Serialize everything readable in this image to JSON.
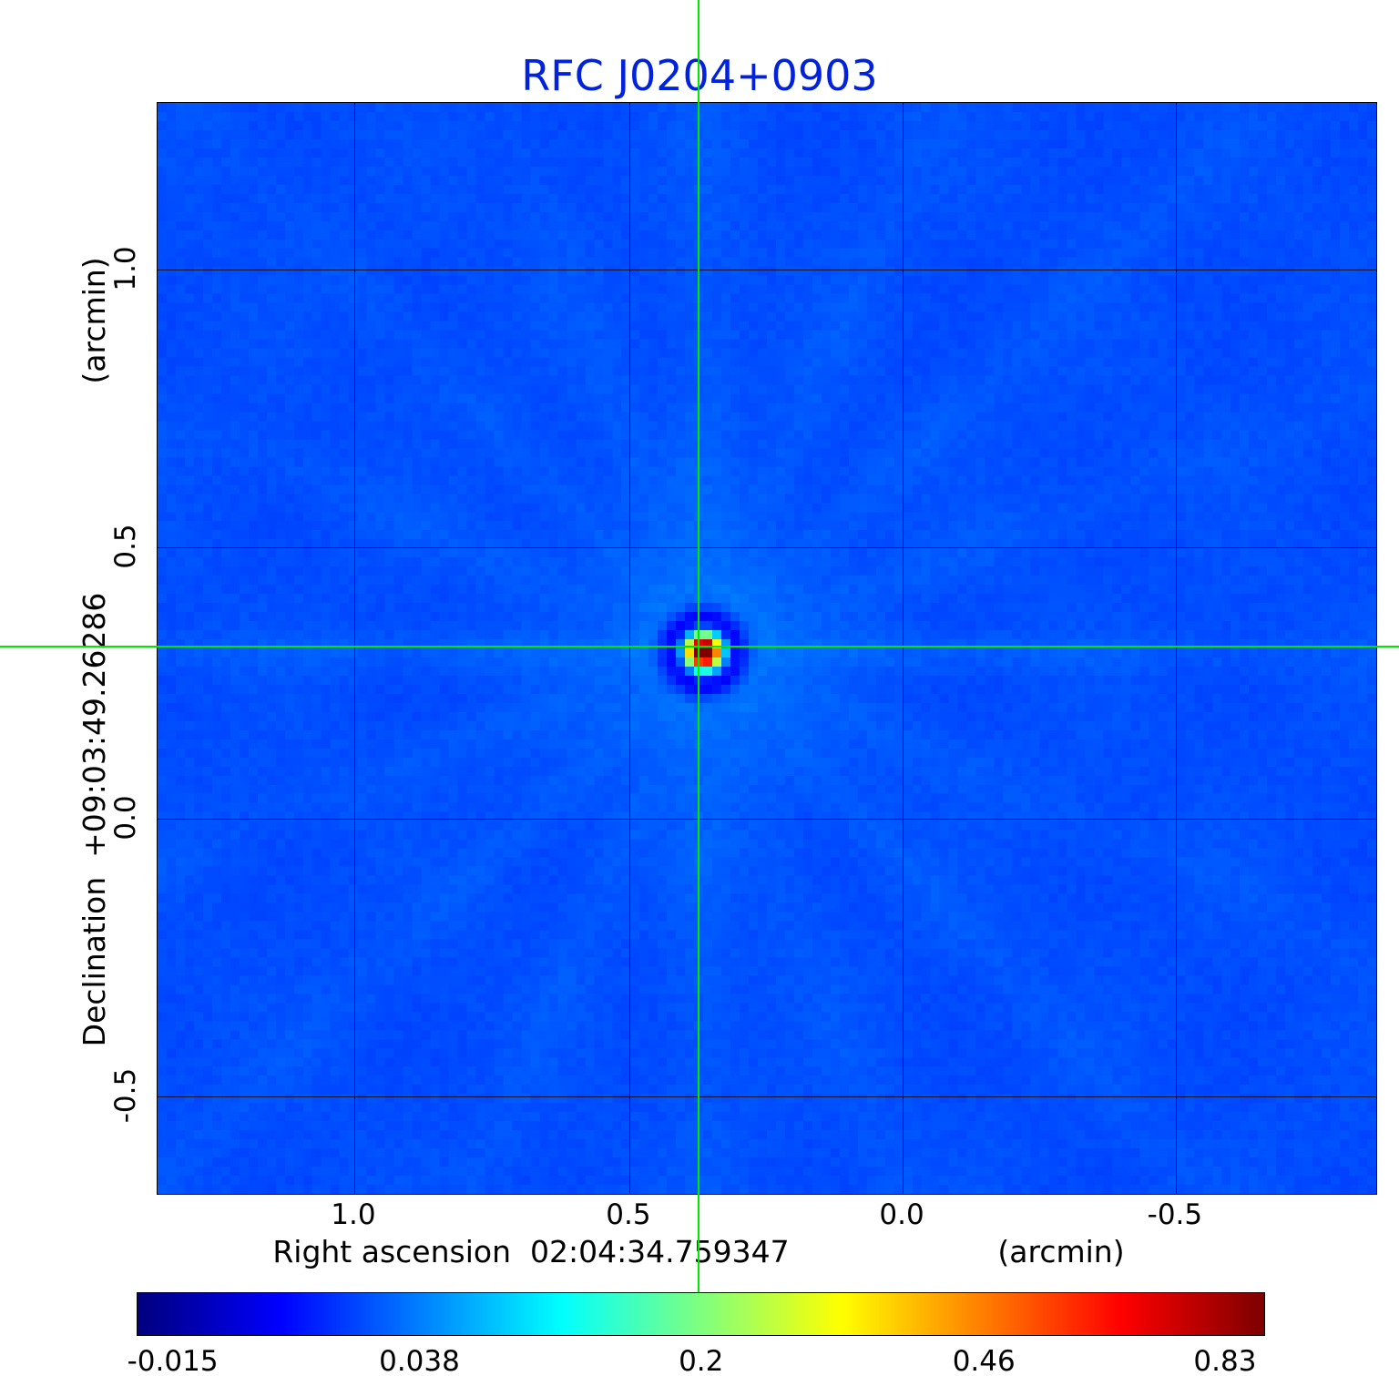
{
  "title": {
    "text": "RFC J0204+0903",
    "color": "#0022dd"
  },
  "axes": {
    "x": {
      "label": "Right ascension",
      "coordinate": "02:04:34.759347",
      "label_full": "Right ascension  02:04:34.759347",
      "unit": "(arcmin)",
      "ticks": [
        "1.0",
        "0.5",
        "0.0",
        "-0.5"
      ]
    },
    "y": {
      "label": "Declination",
      "coordinate": "+09:03:49.26286",
      "label_full": "Declination  +09:03:49.26286",
      "unit": "(arcmin)",
      "ticks": [
        "1.0",
        "0.5",
        "0.0",
        "-0.5"
      ]
    }
  },
  "colorbar": {
    "ticks": [
      "-0.015",
      "0.038",
      "0.2",
      "0.46",
      "0.83"
    ]
  },
  "crosshair": {
    "color": "#00e800"
  },
  "chart_data": {
    "type": "heatmap",
    "title": "RFC J0204+0903",
    "xlabel": "Right ascension 02:04:34.759347 (arcmin)",
    "ylabel": "Declination +09:03:49.26286 (arcmin)",
    "x_ticks_arcmin": [
      1.0,
      0.5,
      0.0,
      -0.5
    ],
    "y_ticks_arcmin": [
      1.0,
      0.5,
      0.0,
      -0.5
    ],
    "x_range_arcmin": [
      1.36,
      -0.86
    ],
    "y_range_arcmin": [
      -0.68,
      1.3
    ],
    "colorbar_ticks": [
      -0.015,
      0.038,
      0.2,
      0.46,
      0.83
    ],
    "value_min": -0.015,
    "value_max": 0.83,
    "colormap": "jet",
    "colorbar_scale": "nonlinear",
    "grid": {
      "shown": true,
      "color": "#000000"
    },
    "source": {
      "name": "RFC J0204+0903",
      "ra": "02:04:34.759347",
      "dec": "+09:03:49.26286",
      "peak_value": 0.83,
      "position_arcmin": {
        "x": 0.37,
        "y": 0.32
      }
    },
    "crosshair": {
      "color": "#00e800",
      "x_arcmin": 0.37,
      "y_arcmin": 0.32
    },
    "render": {
      "cols": 134,
      "rows": 120,
      "background_value": 0.0,
      "peak_amp": 0.85,
      "peak_sigma": 1.35,
      "ring_amp": -0.2,
      "ring_radius": 3.1,
      "ring_width": 1.3,
      "ray_decay": 55,
      "noise_amp": 0.008,
      "norm_zero": 0.2,
      "norm_scale": 0.9639,
      "rays": [
        {
          "angle_deg": 0,
          "amp": 0.03,
          "width": 1.6
        },
        {
          "angle_deg": 24,
          "amp": 0.02,
          "width": 2.2
        },
        {
          "angle_deg": 47,
          "amp": 0.024,
          "width": 2.0
        },
        {
          "angle_deg": 70,
          "amp": 0.018,
          "width": 2.4
        },
        {
          "angle_deg": 90,
          "amp": 0.026,
          "width": 2.6
        },
        {
          "angle_deg": 113,
          "amp": 0.02,
          "width": 2.2
        },
        {
          "angle_deg": 136,
          "amp": 0.024,
          "width": 2.0
        },
        {
          "angle_deg": 159,
          "amp": 0.02,
          "width": 2.2
        }
      ]
    }
  }
}
